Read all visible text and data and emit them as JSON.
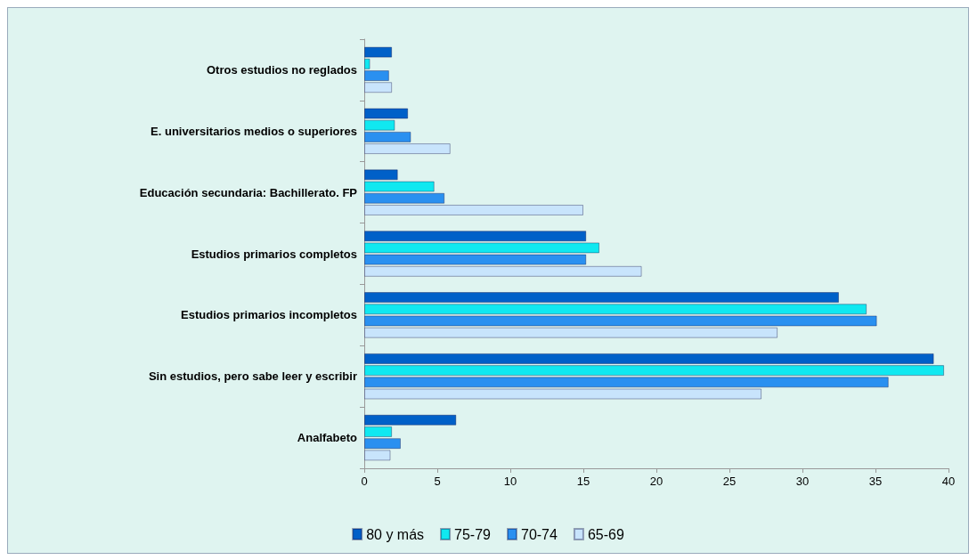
{
  "chart_data": {
    "type": "bar",
    "orientation": "horizontal",
    "categories": [
      "Otros estudios no reglados",
      "E. universitarios medios o superiores",
      "Educación secundaria: Bachillerato. FP",
      "Estudios primarios completos",
      "Estudios primarios incompletos",
      "Sin estudios, pero sabe leer y escribir",
      "Analfabeto"
    ],
    "series": [
      {
        "name": "80 y más",
        "color": "#0060c8",
        "values": [
          1.9,
          3.0,
          2.3,
          15.2,
          32.5,
          39.0,
          6.3
        ]
      },
      {
        "name": "75-79",
        "color": "#10e8f0",
        "values": [
          0.4,
          2.1,
          4.8,
          16.1,
          34.4,
          39.7,
          1.9
        ]
      },
      {
        "name": "70-74",
        "color": "#2a90f0",
        "values": [
          1.7,
          3.2,
          5.5,
          15.2,
          35.1,
          35.9,
          2.5
        ]
      },
      {
        "name": "65-69",
        "color": "#c8e4fc",
        "values": [
          1.9,
          5.9,
          15.0,
          19.0,
          28.3,
          27.2,
          1.8
        ]
      }
    ],
    "xlim": [
      0,
      40
    ],
    "xticks": [
      0,
      5,
      10,
      15,
      20,
      25,
      30,
      35,
      40
    ],
    "grid": false,
    "legend": "bottom"
  }
}
